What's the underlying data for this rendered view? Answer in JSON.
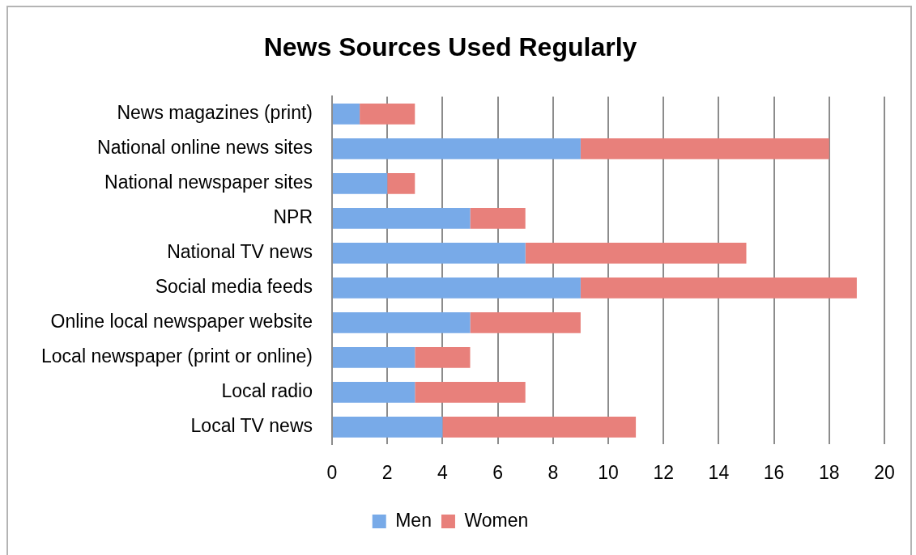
{
  "chart_data": {
    "type": "bar",
    "orientation": "horizontal",
    "stacked": true,
    "title": "News Sources Used Regularly",
    "categories": [
      "News magazines (print)",
      "National online news sites",
      "National newspaper sites",
      "NPR",
      "National TV news",
      "Social media feeds",
      "Online local newspaper website",
      "Local newspaper (print or online)",
      "Local radio",
      "Local TV news"
    ],
    "series": [
      {
        "name": "Men",
        "color": "#78aae8",
        "values": [
          1,
          9,
          2,
          5,
          7,
          9,
          5,
          3,
          3,
          4
        ]
      },
      {
        "name": "Women",
        "color": "#e8807b",
        "values": [
          2,
          9,
          1,
          2,
          8,
          10,
          4,
          2,
          4,
          7
        ]
      }
    ],
    "xlim": [
      0,
      20
    ],
    "xticks": [
      0,
      2,
      4,
      6,
      8,
      10,
      12,
      14,
      16,
      18,
      20
    ],
    "grid": "x",
    "legend": "bottom"
  }
}
